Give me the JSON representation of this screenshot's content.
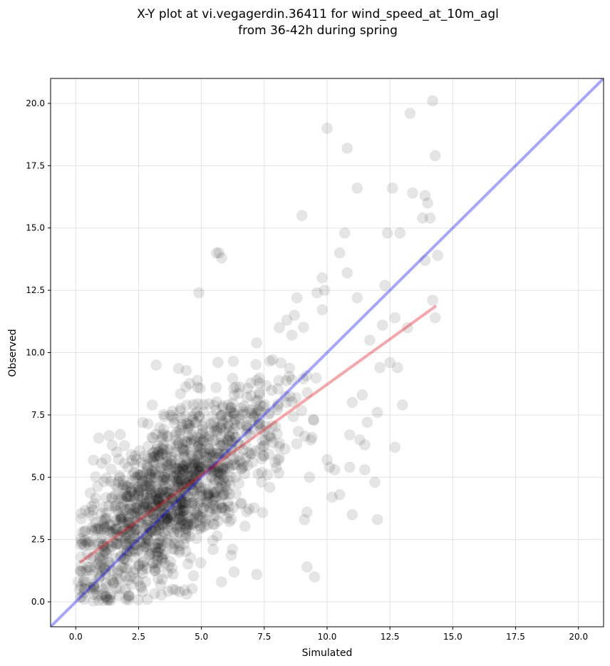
{
  "chart_data": {
    "type": "scatter",
    "title_line1": "X-Y plot at vi.vegagerdin.36411 for wind_speed_at_10m_agl",
    "title_line2": "from 36-42h during spring",
    "xlabel": "Simulated",
    "ylabel": "Observed",
    "xlim": [
      -1.0,
      21.0
    ],
    "ylim": [
      -1.0,
      21.0
    ],
    "xticks": [
      0.0,
      2.5,
      5.0,
      7.5,
      10.0,
      12.5,
      15.0,
      17.5,
      20.0
    ],
    "yticks": [
      0.0,
      2.5,
      5.0,
      7.5,
      10.0,
      12.5,
      15.0,
      17.5,
      20.0
    ],
    "xtick_labels": [
      "0.0",
      "2.5",
      "5.0",
      "7.5",
      "10.0",
      "12.5",
      "15.0",
      "17.5",
      "20.0"
    ],
    "ytick_labels": [
      "0.0",
      "2.5",
      "5.0",
      "7.5",
      "10.0",
      "12.5",
      "15.0",
      "17.5",
      "20.0"
    ],
    "grid": true,
    "point_color": "#000000",
    "point_opacity": 0.1,
    "identity_line": {
      "x": [
        -1.0,
        21.0
      ],
      "y": [
        -1.0,
        21.0
      ],
      "color": "#0000ff"
    },
    "regression_line": {
      "x": [
        0.2,
        14.3
      ],
      "y": [
        1.6,
        11.85
      ],
      "color": "#e8000b"
    },
    "outliers": {
      "x": [
        14.2,
        13.3,
        10.0,
        10.8,
        14.3,
        11.2,
        12.6,
        13.4,
        13.9,
        14.0,
        14.1,
        13.8,
        9.0,
        10.7,
        12.4,
        12.9,
        10.5,
        14.4,
        13.9,
        5.7,
        5.8,
        10.8,
        9.6,
        9.8,
        9.9,
        12.3,
        11.2,
        14.2,
        14.3,
        8.8,
        13.2,
        12.2,
        12.7,
        11.7,
        12.5,
        12.8,
        12.1,
        12.0,
        11.4,
        11.6,
        11.0,
        11.3,
        10.9,
        9.4,
        10.0,
        10.1,
        10.3,
        9.3,
        11.5,
        11.9,
        11.5,
        10.2,
        13.0,
        12.7,
        9.2,
        9.1,
        10.9,
        12.0,
        11.0,
        10.5,
        9.2,
        9.5,
        7.2,
        4.9,
        5.6,
        3.2,
        2.1,
        8.7,
        8.1,
        8.4,
        8.6,
        5.8,
        6.3
      ],
      "y": [
        20.1,
        19.6,
        19.0,
        18.2,
        17.9,
        16.6,
        16.6,
        16.4,
        16.3,
        16.0,
        15.4,
        15.4,
        15.5,
        14.8,
        14.8,
        14.8,
        14.0,
        13.9,
        13.7,
        14.0,
        13.8,
        13.2,
        12.4,
        13.0,
        12.5,
        12.7,
        12.2,
        12.1,
        11.4,
        12.2,
        11.0,
        11.1,
        11.4,
        10.5,
        9.6,
        9.4,
        9.4,
        7.6,
        8.3,
        7.2,
        8.0,
        6.5,
        6.7,
        6.6,
        5.7,
        5.4,
        5.3,
        5.0,
        6.3,
        4.8,
        5.3,
        4.2,
        7.9,
        6.2,
        3.6,
        3.3,
        5.4,
        3.3,
        3.5,
        4.3,
        1.4,
        1.0,
        1.1,
        12.4,
        14.0,
        9.5,
        0.2,
        11.5,
        11.0,
        11.3,
        10.7,
        0.8,
        1.2
      ]
    },
    "dense_cloud": {
      "description_counts": 1300,
      "x_mean": 3.9,
      "x_sd": 2.1,
      "slope": 0.72,
      "intercept": 1.5,
      "resid_sd": 1.55,
      "x_range": [
        0.1,
        10.5
      ],
      "y_range": [
        0.0,
        11.8
      ]
    }
  }
}
